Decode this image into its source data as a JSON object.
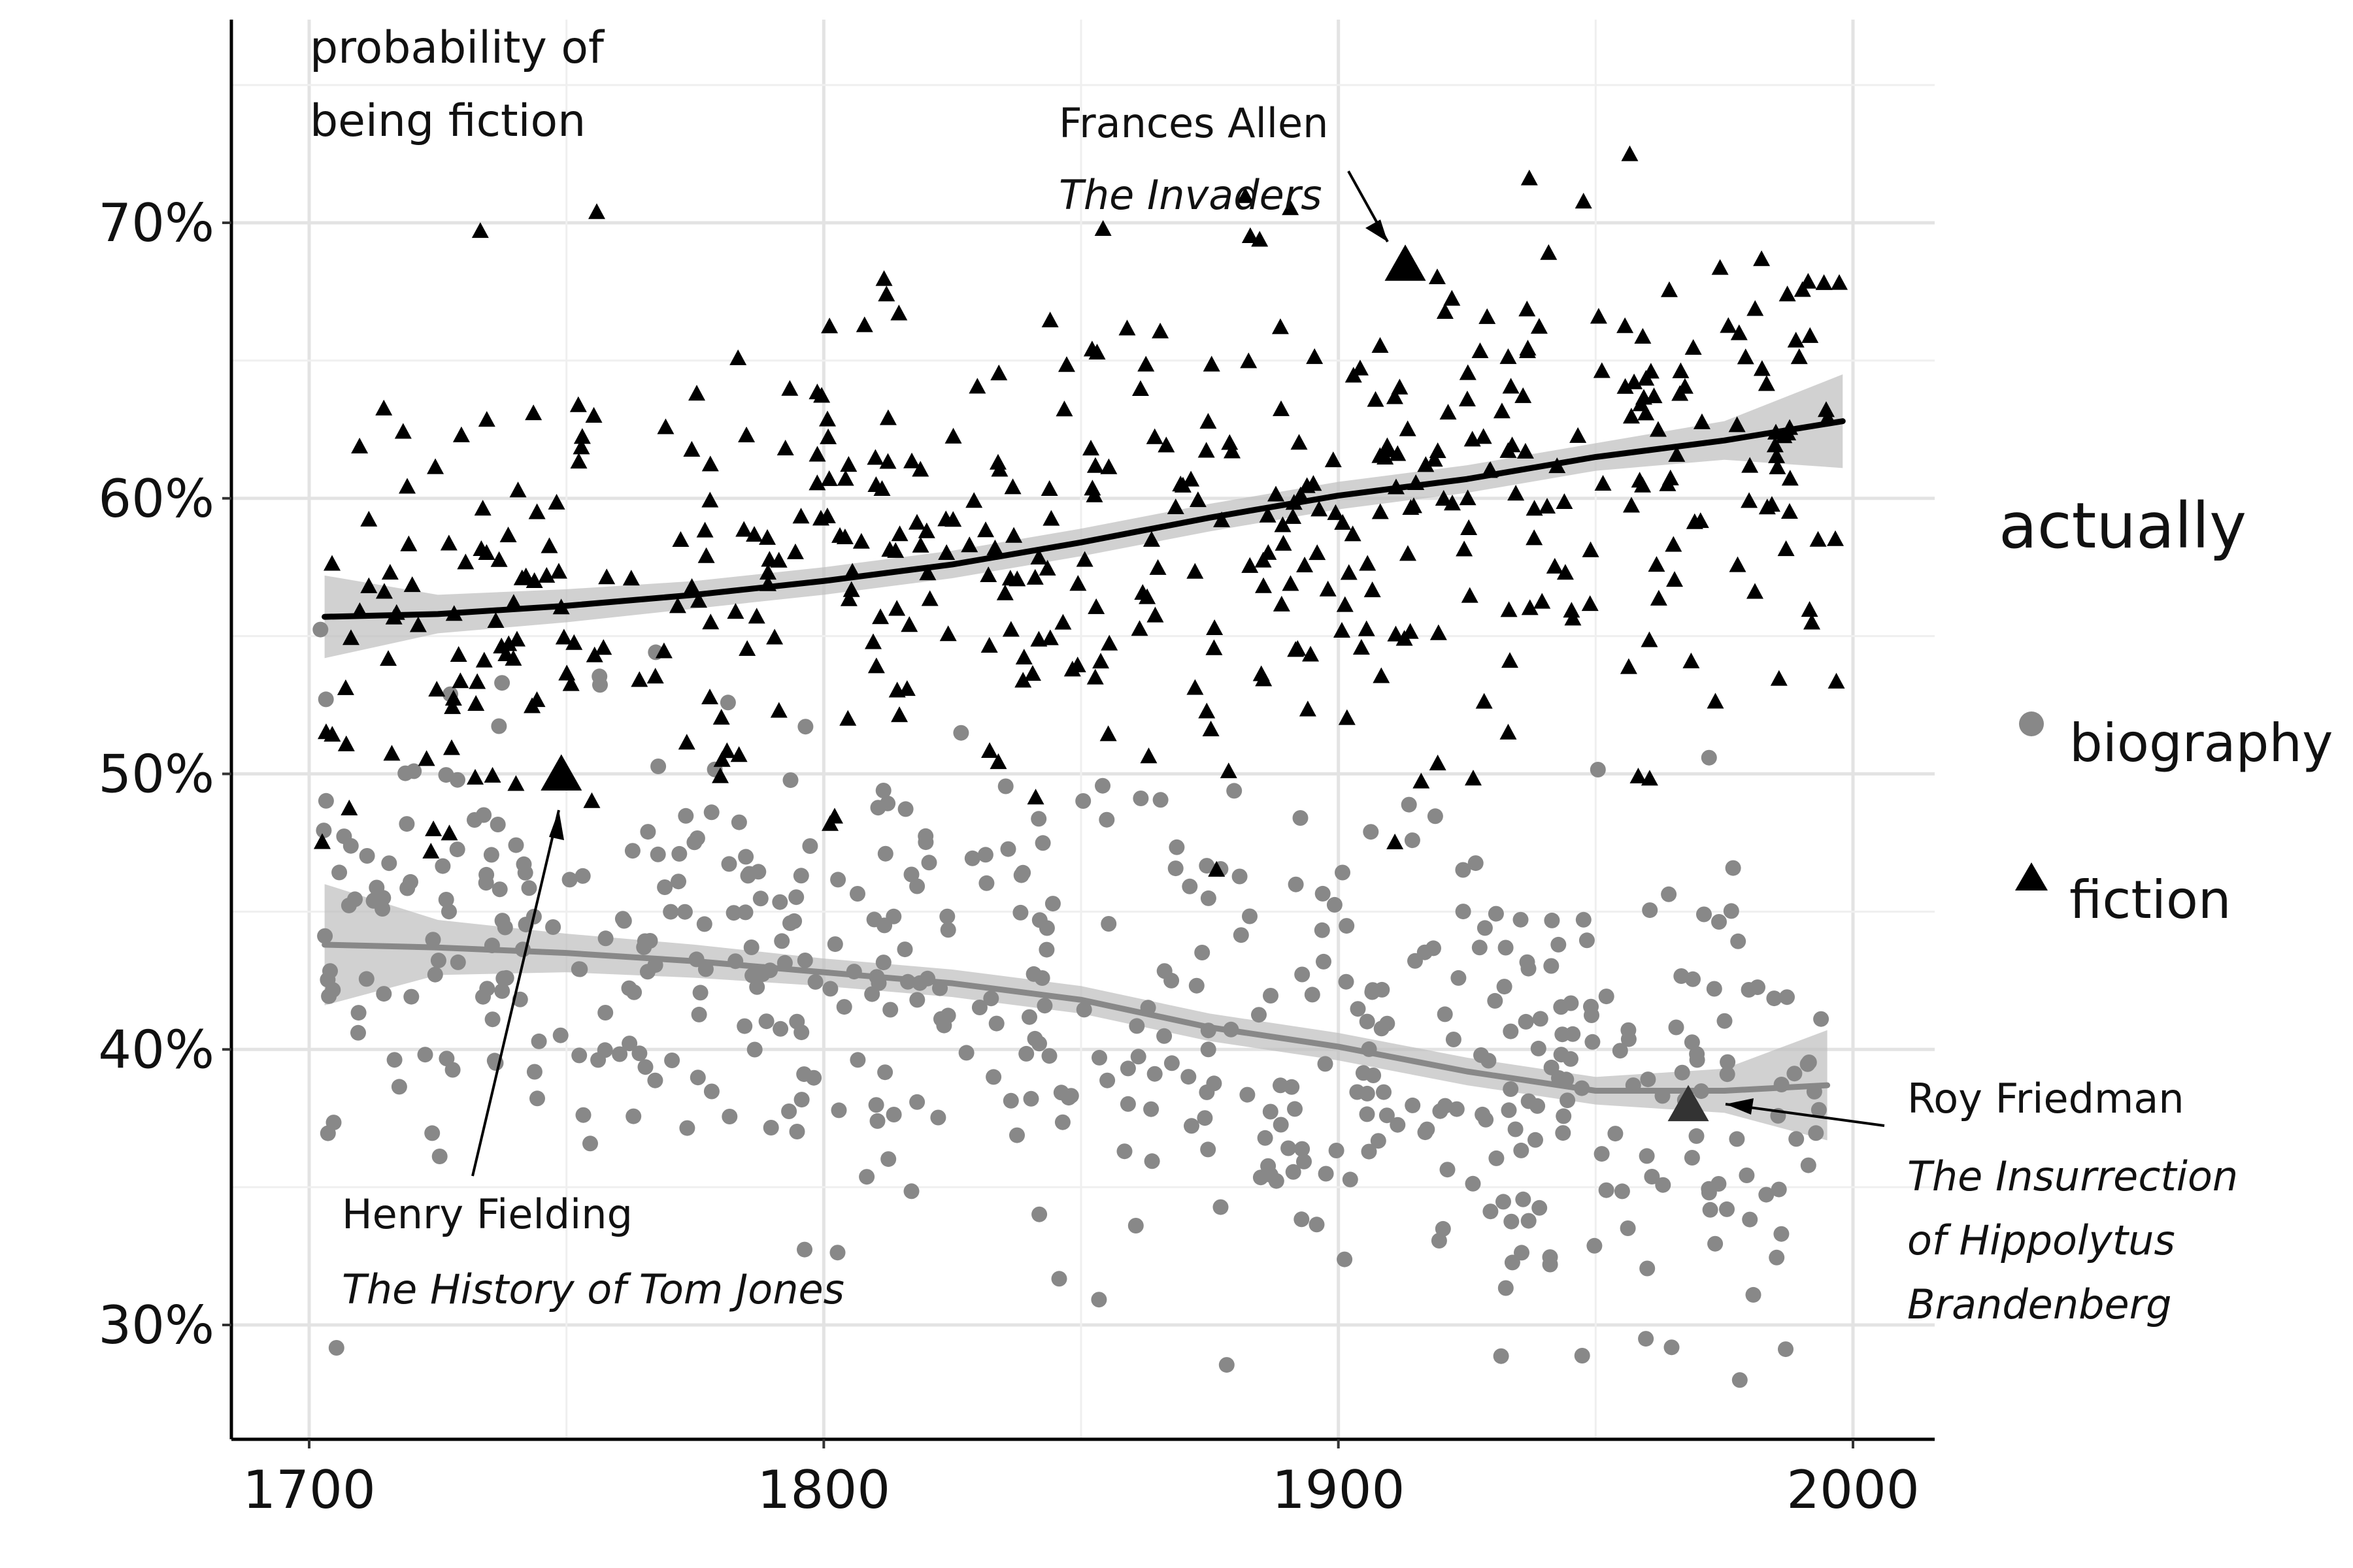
{
  "chart_data": {
    "type": "scatter",
    "ylabel": [
      "probability of",
      "being fiction"
    ],
    "xlabel": "",
    "xlim": [
      1685,
      2015
    ],
    "ylim": [
      0.26,
      0.775
    ],
    "x_ticks": [
      1700,
      1800,
      1900,
      2000
    ],
    "x_tick_labels": [
      "1700",
      "1800",
      "1900",
      "2000"
    ],
    "y_ticks": [
      0.3,
      0.4,
      0.5,
      0.6,
      0.7
    ],
    "y_tick_labels": [
      "30%",
      "40%",
      "50%",
      "60%",
      "70%"
    ],
    "grid": true,
    "legend": {
      "title": "actually",
      "position": "right",
      "entries": [
        {
          "label": "biography",
          "shape": "circle",
          "color": "#888888"
        },
        {
          "label": "fiction",
          "shape": "triangle",
          "color": "#000000"
        }
      ]
    },
    "series": [
      {
        "name": "biography",
        "shape": "circle",
        "color": "#888888",
        "smooth": {
          "x": [
            1703,
            1725,
            1750,
            1775,
            1800,
            1825,
            1850,
            1875,
            1900,
            1925,
            1950,
            1975,
            1995
          ],
          "y": [
            0.438,
            0.437,
            0.435,
            0.432,
            0.428,
            0.424,
            0.418,
            0.408,
            0.401,
            0.392,
            0.385,
            0.385,
            0.387
          ],
          "lower": [
            0.416,
            0.427,
            0.428,
            0.426,
            0.423,
            0.419,
            0.413,
            0.403,
            0.396,
            0.387,
            0.38,
            0.377,
            0.367
          ],
          "upper": [
            0.46,
            0.447,
            0.442,
            0.438,
            0.433,
            0.429,
            0.423,
            0.413,
            0.406,
            0.397,
            0.39,
            0.393,
            0.407
          ],
          "color": "#888888"
        }
      },
      {
        "name": "fiction",
        "shape": "triangle",
        "color": "#000000",
        "smooth": {
          "x": [
            1703,
            1725,
            1750,
            1775,
            1800,
            1825,
            1850,
            1875,
            1900,
            1925,
            1950,
            1975,
            1998
          ],
          "y": [
            0.557,
            0.558,
            0.561,
            0.565,
            0.57,
            0.576,
            0.584,
            0.593,
            0.601,
            0.607,
            0.615,
            0.621,
            0.628
          ],
          "lower": [
            0.542,
            0.551,
            0.555,
            0.56,
            0.565,
            0.571,
            0.579,
            0.588,
            0.596,
            0.602,
            0.61,
            0.614,
            0.611
          ],
          "upper": [
            0.572,
            0.565,
            0.567,
            0.57,
            0.575,
            0.581,
            0.589,
            0.598,
            0.606,
            0.612,
            0.62,
            0.628,
            0.645
          ],
          "color": "#000000"
        }
      }
    ],
    "highlighted_points": [
      {
        "name": "Henry Fielding",
        "title": "The History of Tom Jones",
        "series": "fiction",
        "x": 1749,
        "y": 0.5
      },
      {
        "name": "Frances Allen",
        "title": "The Invaders",
        "series": "fiction",
        "x": 1913,
        "y": 0.685
      },
      {
        "name": "Roy Friedman",
        "title_lines": [
          "The Insurrection",
          "of Hippolytus",
          "Brandenberg"
        ],
        "series": "fiction",
        "x": 1968,
        "y": 0.38
      }
    ]
  }
}
